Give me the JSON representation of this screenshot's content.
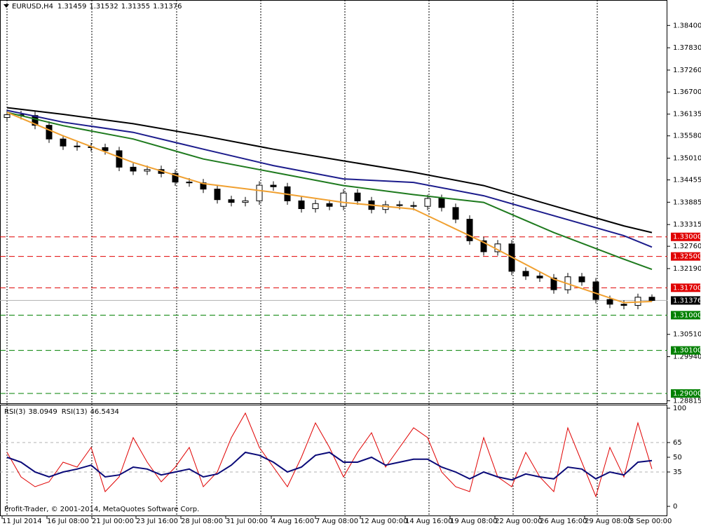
{
  "chart_data": [
    {
      "type": "candlestick",
      "title": "EURUSD,H4",
      "x": [
        0,
        1,
        2,
        3,
        4,
        5,
        6,
        7,
        8,
        9,
        10,
        11,
        12,
        13,
        14,
        15,
        16,
        17,
        18,
        19,
        20,
        21,
        22,
        23,
        24,
        25,
        26,
        27,
        28,
        29,
        30,
        31,
        32,
        33,
        34,
        35,
        36,
        37,
        38,
        39,
        40,
        41,
        42,
        43,
        44,
        45,
        46
      ],
      "open": [
        1.3605,
        1.3612,
        1.361,
        1.3585,
        1.355,
        1.3532,
        1.353,
        1.3528,
        1.352,
        1.3478,
        1.3468,
        1.3472,
        1.3462,
        1.344,
        1.3438,
        1.3422,
        1.3395,
        1.3388,
        1.3392,
        1.3432,
        1.3428,
        1.3392,
        1.3372,
        1.3385,
        1.3378,
        1.3412,
        1.3392,
        1.337,
        1.3382,
        1.338,
        1.3378,
        1.3398,
        1.3375,
        1.3345,
        1.329,
        1.3262,
        1.3282,
        1.3212,
        1.32,
        1.3195,
        1.3165,
        1.3198,
        1.3185,
        1.314,
        1.3128,
        1.3125,
        1.31459
      ],
      "high": [
        1.3622,
        1.3622,
        1.362,
        1.3595,
        1.356,
        1.3542,
        1.354,
        1.3538,
        1.353,
        1.3488,
        1.3482,
        1.3482,
        1.3472,
        1.345,
        1.3448,
        1.3432,
        1.3405,
        1.3402,
        1.3442,
        1.3442,
        1.3438,
        1.3402,
        1.3395,
        1.3395,
        1.3422,
        1.3422,
        1.3402,
        1.3392,
        1.3392,
        1.339,
        1.3408,
        1.3408,
        1.3385,
        1.3355,
        1.33,
        1.3292,
        1.3292,
        1.3222,
        1.321,
        1.3205,
        1.3208,
        1.3208,
        1.3195,
        1.315,
        1.3138,
        1.3155,
        1.31532
      ],
      "low": [
        1.3595,
        1.36,
        1.3575,
        1.354,
        1.3522,
        1.352,
        1.3518,
        1.351,
        1.3468,
        1.3458,
        1.3458,
        1.3452,
        1.343,
        1.3428,
        1.3412,
        1.3385,
        1.3378,
        1.3378,
        1.3382,
        1.3418,
        1.3382,
        1.3362,
        1.3362,
        1.3368,
        1.3368,
        1.3382,
        1.336,
        1.336,
        1.337,
        1.3368,
        1.3368,
        1.3365,
        1.3335,
        1.328,
        1.3252,
        1.3252,
        1.3202,
        1.319,
        1.3185,
        1.3155,
        1.3155,
        1.3175,
        1.313,
        1.3118,
        1.3115,
        1.3115,
        1.31355
      ],
      "close": [
        1.3612,
        1.361,
        1.3585,
        1.355,
        1.3532,
        1.353,
        1.3528,
        1.352,
        1.3478,
        1.3468,
        1.3472,
        1.3462,
        1.344,
        1.3438,
        1.3422,
        1.3395,
        1.3388,
        1.3392,
        1.3432,
        1.3428,
        1.3392,
        1.3372,
        1.3385,
        1.3378,
        1.3412,
        1.3392,
        1.337,
        1.3382,
        1.338,
        1.3378,
        1.3398,
        1.3375,
        1.3345,
        1.329,
        1.3262,
        1.3282,
        1.3212,
        1.32,
        1.3195,
        1.3165,
        1.3198,
        1.3185,
        1.314,
        1.3128,
        1.3125,
        1.31459,
        1.31376
      ],
      "up_color": "#ffffff",
      "down_color": "#000000",
      "series": [
        {
          "color": "#000000",
          "x": [
            0,
            4,
            9,
            14,
            19,
            24,
            29,
            34,
            39,
            44,
            46
          ],
          "values": [
            1.363,
            1.3613,
            1.3589,
            1.3558,
            1.3524,
            1.3494,
            1.3465,
            1.3431,
            1.3379,
            1.3328,
            1.3311
          ]
        },
        {
          "color": "#1c1c8c",
          "x": [
            0,
            4,
            9,
            14,
            19,
            24,
            29,
            34,
            39,
            44,
            46
          ],
          "values": [
            1.3623,
            1.3593,
            1.3567,
            1.3524,
            1.3482,
            1.3448,
            1.3439,
            1.3405,
            1.3354,
            1.3303,
            1.3274
          ]
        },
        {
          "color": "#1e7a1e",
          "x": [
            0,
            4,
            9,
            14,
            19,
            24,
            29,
            34,
            39,
            44,
            46
          ],
          "values": [
            1.3618,
            1.3584,
            1.355,
            1.3499,
            1.3465,
            1.3431,
            1.3408,
            1.3388,
            1.3311,
            1.3243,
            1.3217
          ]
        },
        {
          "color": "#f0a030",
          "x": [
            0,
            4,
            9,
            14,
            19,
            24,
            29,
            34,
            39,
            44,
            46
          ],
          "values": [
            1.3618,
            1.3558,
            1.349,
            1.3436,
            1.3414,
            1.3388,
            1.3371,
            1.3286,
            1.3192,
            1.3132,
            1.3135
          ]
        }
      ],
      "levels": [
        {
          "value": 1.33,
          "label": "1.33000",
          "color": "#e00000"
        },
        {
          "value": 1.325,
          "label": "1.32500",
          "color": "#e00000"
        },
        {
          "value": 1.317,
          "label": "1.31700",
          "color": "#e00000"
        },
        {
          "value": 1.31,
          "label": "1.31000",
          "color": "#008000"
        },
        {
          "value": 1.301,
          "label": "1.30100",
          "color": "#008000"
        },
        {
          "value": 1.29,
          "label": "1.29000",
          "color": "#008000"
        }
      ],
      "xlim": [
        -0.5,
        47.1
      ],
      "xticks": [
        {
          "value": -0.35,
          "label": "11 Jul 2014"
        },
        {
          "value": 2.85,
          "label": "16 Jul 08:00"
        },
        {
          "value": 6.05,
          "label": "21 Jul 00:00"
        },
        {
          "value": 9.2,
          "label": "23 Jul 16:00"
        },
        {
          "value": 12.4,
          "label": "28 Jul 08:00"
        },
        {
          "value": 15.6,
          "label": "31 Jul 00:00"
        },
        {
          "value": 18.85,
          "label": "4 Aug 16:00"
        },
        {
          "value": 22,
          "label": "7 Aug 08:00"
        },
        {
          "value": 25.2,
          "label": "12 Aug 00:00"
        },
        {
          "value": 28.4,
          "label": "14 Aug 16:00"
        },
        {
          "value": 31.6,
          "label": "19 Aug 08:00"
        },
        {
          "value": 34.8,
          "label": "22 Aug 00:00"
        },
        {
          "value": 38,
          "label": "26 Aug 16:00"
        },
        {
          "value": 41.2,
          "label": "29 Aug 08:00"
        },
        {
          "value": 44.4,
          "label": "3 Sep 00:00"
        }
      ],
      "ylim": [
        1.2875,
        1.3905
      ],
      "yticks": [
        {
          "value": 1.384,
          "label": "1.38400"
        },
        {
          "value": 1.3783,
          "label": "1.37830"
        },
        {
          "value": 1.3726,
          "label": "1.37260"
        },
        {
          "value": 1.367,
          "label": "1.36700"
        },
        1.36135,
        {
          "value": 1.3558,
          "label": "1.35580"
        },
        {
          "value": 1.3501,
          "label": "1.35010"
        },
        1.34455,
        1.33885,
        1.33315,
        {
          "value": 1.3276,
          "label": "1.32760"
        },
        {
          "value": 1.3219,
          "label": "1.32190"
        },
        {
          "value": 1.3051,
          "label": "1.30510"
        },
        {
          "value": 1.2994,
          "label": "1.29940"
        },
        1.28815
      ]
    },
    {
      "type": "line",
      "series": [
        {
          "name": "RSI(3)",
          "color": "#e00000",
          "values": [
            55,
            30,
            20,
            25,
            45,
            40,
            60,
            15,
            30,
            70,
            45,
            25,
            40,
            60,
            20,
            35,
            70,
            95,
            60,
            40,
            20,
            50,
            85,
            60,
            30,
            55,
            75,
            40,
            60,
            80,
            70,
            35,
            20,
            15,
            70,
            30,
            20,
            55,
            30,
            15,
            80,
            45,
            10,
            60,
            30,
            85,
            38.0949
          ]
        },
        {
          "name": "RSI(13)",
          "color": "#0a0a78",
          "values": [
            50,
            45,
            35,
            30,
            35,
            38,
            42,
            30,
            32,
            40,
            38,
            32,
            35,
            38,
            30,
            33,
            42,
            55,
            52,
            45,
            35,
            40,
            52,
            55,
            45,
            45,
            50,
            42,
            45,
            48,
            48,
            40,
            35,
            28,
            35,
            30,
            27,
            33,
            30,
            28,
            40,
            38,
            28,
            35,
            32,
            45,
            46.5434
          ]
        }
      ],
      "ylim": [
        0,
        100
      ],
      "yticks": [
        100,
        65,
        50,
        35,
        0
      ],
      "levels": [
        65,
        35
      ]
    }
  ],
  "footer": "Profit-Trader, © 2001-2014, MetaQuotes Software Corp."
}
